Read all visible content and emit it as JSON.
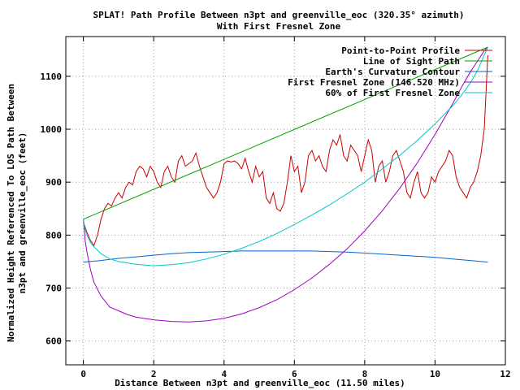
{
  "chart_data": {
    "type": "line",
    "title": "SPLAT! Path Profile Between n3pt and greenville_eoc (320.35° azimuth)",
    "subtitle": "With First Fresnel Zone",
    "xlabel": "Distance Between n3pt and greenville_eoc (11.50 miles)",
    "ylabel_line1": "Normalized Height Referenced To LOS Path Between",
    "ylabel_line2": "n3pt and greenville_eoc (feet)",
    "xlim": [
      -0.5,
      12
    ],
    "ylim": [
      555,
      1175
    ],
    "x_ticks": [
      0,
      2,
      4,
      6,
      8,
      10,
      12
    ],
    "y_ticks": [
      600,
      700,
      800,
      900,
      1000,
      1100
    ],
    "grid": true,
    "legend_position": "top-right",
    "series": [
      {
        "name": "Point-to-Point Profile",
        "color": "#cc0000",
        "x": [
          0.0,
          0.1,
          0.2,
          0.3,
          0.4,
          0.5,
          0.6,
          0.7,
          0.8,
          0.9,
          1.0,
          1.1,
          1.2,
          1.3,
          1.4,
          1.5,
          1.6,
          1.7,
          1.8,
          1.9,
          2.0,
          2.1,
          2.2,
          2.3,
          2.4,
          2.5,
          2.6,
          2.7,
          2.8,
          2.9,
          3.0,
          3.1,
          3.2,
          3.3,
          3.4,
          3.5,
          3.6,
          3.7,
          3.8,
          3.9,
          4.0,
          4.1,
          4.2,
          4.3,
          4.4,
          4.5,
          4.6,
          4.7,
          4.8,
          4.9,
          5.0,
          5.1,
          5.2,
          5.3,
          5.4,
          5.5,
          5.6,
          5.7,
          5.8,
          5.9,
          6.0,
          6.1,
          6.2,
          6.3,
          6.4,
          6.5,
          6.6,
          6.7,
          6.8,
          6.9,
          7.0,
          7.1,
          7.2,
          7.3,
          7.4,
          7.5,
          7.6,
          7.7,
          7.8,
          7.9,
          8.0,
          8.1,
          8.2,
          8.3,
          8.4,
          8.5,
          8.6,
          8.7,
          8.8,
          8.9,
          9.0,
          9.1,
          9.2,
          9.3,
          9.4,
          9.5,
          9.6,
          9.7,
          9.8,
          9.9,
          10.0,
          10.1,
          10.2,
          10.3,
          10.4,
          10.5,
          10.6,
          10.7,
          10.8,
          10.9,
          11.0,
          11.1,
          11.2,
          11.3,
          11.4,
          11.5
        ],
        "values": [
          825,
          805,
          790,
          780,
          800,
          830,
          850,
          860,
          855,
          870,
          880,
          870,
          890,
          900,
          895,
          920,
          930,
          925,
          910,
          930,
          920,
          900,
          890,
          920,
          930,
          910,
          900,
          940,
          950,
          930,
          935,
          940,
          955,
          930,
          910,
          890,
          880,
          870,
          880,
          900,
          935,
          940,
          938,
          940,
          935,
          925,
          945,
          920,
          900,
          930,
          910,
          920,
          870,
          860,
          880,
          850,
          845,
          860,
          900,
          950,
          920,
          930,
          880,
          900,
          950,
          960,
          940,
          950,
          930,
          920,
          960,
          980,
          970,
          990,
          950,
          940,
          970,
          960,
          950,
          920,
          950,
          980,
          960,
          900,
          930,
          940,
          900,
          920,
          950,
          960,
          940,
          920,
          880,
          870,
          900,
          920,
          880,
          870,
          880,
          910,
          900,
          920,
          930,
          940,
          960,
          950,
          910,
          890,
          880,
          870,
          890,
          900,
          920,
          950,
          1000,
          1140
        ],
        "visible": true
      },
      {
        "name": "Line of Sight Path",
        "color": "#00a000",
        "x": [
          0,
          11.5
        ],
        "values": [
          830,
          1155
        ],
        "visible": true
      },
      {
        "name": "Earth's Curvature Contour",
        "color": "#0066cc",
        "x": [
          0,
          0.5,
          1,
          1.5,
          2,
          2.5,
          3,
          3.5,
          4,
          4.5,
          5,
          5.5,
          6,
          6.5,
          7,
          7.5,
          8,
          8.5,
          9,
          9.5,
          10,
          10.5,
          11,
          11.5
        ],
        "values": [
          749,
          752,
          756,
          759,
          762,
          765,
          767,
          768,
          769,
          770,
          770,
          770,
          770,
          770,
          769,
          768,
          766,
          764,
          762,
          760,
          758,
          755,
          752,
          749
        ],
        "visible": true
      },
      {
        "name": "First Fresnel Zone (146.520 MHz)",
        "color": "#a000c0",
        "x": [
          0,
          0.05,
          0.1,
          0.2,
          0.3,
          0.5,
          0.75,
          1,
          1.25,
          1.5,
          2,
          2.5,
          3,
          3.5,
          4,
          4.5,
          5,
          5.5,
          6,
          6.5,
          7,
          7.5,
          8,
          8.5,
          9,
          9.5,
          10,
          10.5,
          10.75,
          11,
          11.2,
          11.4,
          11.45,
          11.5
        ],
        "values": [
          830,
          790,
          768,
          735,
          711,
          685,
          664,
          657,
          650,
          645,
          640,
          637,
          636,
          638,
          643,
          651,
          663,
          678,
          697,
          719,
          745,
          774,
          808,
          846,
          889,
          937,
          990,
          1048,
          1079,
          1108,
          1128,
          1148,
          1152,
          1155
        ],
        "visible": true
      },
      {
        "name": "60% of First Fresnel Zone",
        "color": "#00c8c8",
        "x": [
          0,
          0.05,
          0.1,
          0.2,
          0.3,
          0.5,
          0.75,
          1,
          1.5,
          2,
          2.5,
          3,
          3.5,
          4,
          4.5,
          5,
          5.5,
          6,
          6.5,
          7,
          7.5,
          8,
          8.5,
          9,
          9.5,
          10,
          10.5,
          10.75,
          11,
          11.2,
          11.4,
          11.5
        ],
        "values": [
          830,
          810,
          800,
          786,
          778,
          765,
          755,
          750,
          745,
          742,
          744,
          748,
          755,
          764,
          775,
          788,
          803,
          820,
          838,
          857,
          878,
          900,
          925,
          951,
          979,
          1010,
          1044,
          1064,
          1087,
          1110,
          1140,
          1155
        ],
        "visible": true
      }
    ]
  }
}
